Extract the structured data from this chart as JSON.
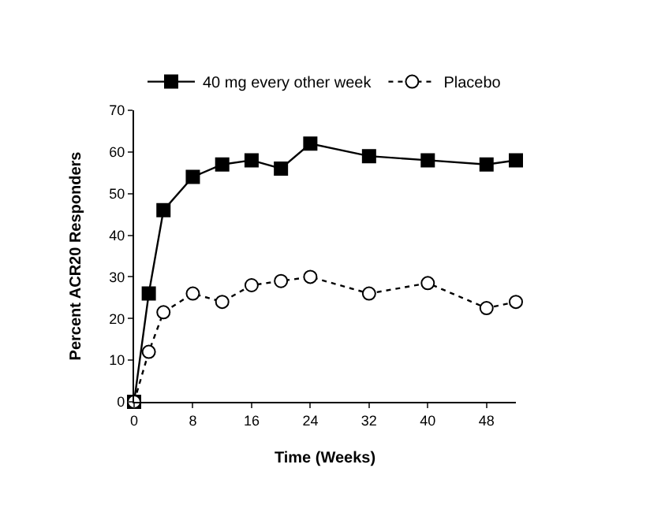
{
  "chart_data": {
    "type": "line",
    "xlabel": "Time (Weeks)",
    "ylabel": "Percent ACR20 Responders",
    "x": [
      0,
      2,
      4,
      8,
      12,
      16,
      20,
      24,
      32,
      40,
      48,
      52
    ],
    "series": [
      {
        "name": "40 mg every other week",
        "color": "#000000",
        "marker": "square",
        "line_style": "solid",
        "values": [
          0,
          26,
          46,
          54,
          57,
          58,
          56,
          62,
          59,
          58,
          57,
          58
        ]
      },
      {
        "name": "Placebo",
        "color": "#000000",
        "marker": "circle",
        "line_style": "dotted",
        "values": [
          0,
          12,
          21.5,
          26,
          24,
          28,
          29,
          30,
          26,
          28.5,
          22.5,
          24
        ]
      }
    ],
    "xlim": [
      0,
      52
    ],
    "xticks": [
      0,
      8,
      16,
      24,
      32,
      40,
      48
    ],
    "ylim": [
      0,
      70
    ],
    "yticks": [
      0,
      10,
      20,
      30,
      40,
      50,
      60,
      70
    ],
    "legend": "top"
  }
}
